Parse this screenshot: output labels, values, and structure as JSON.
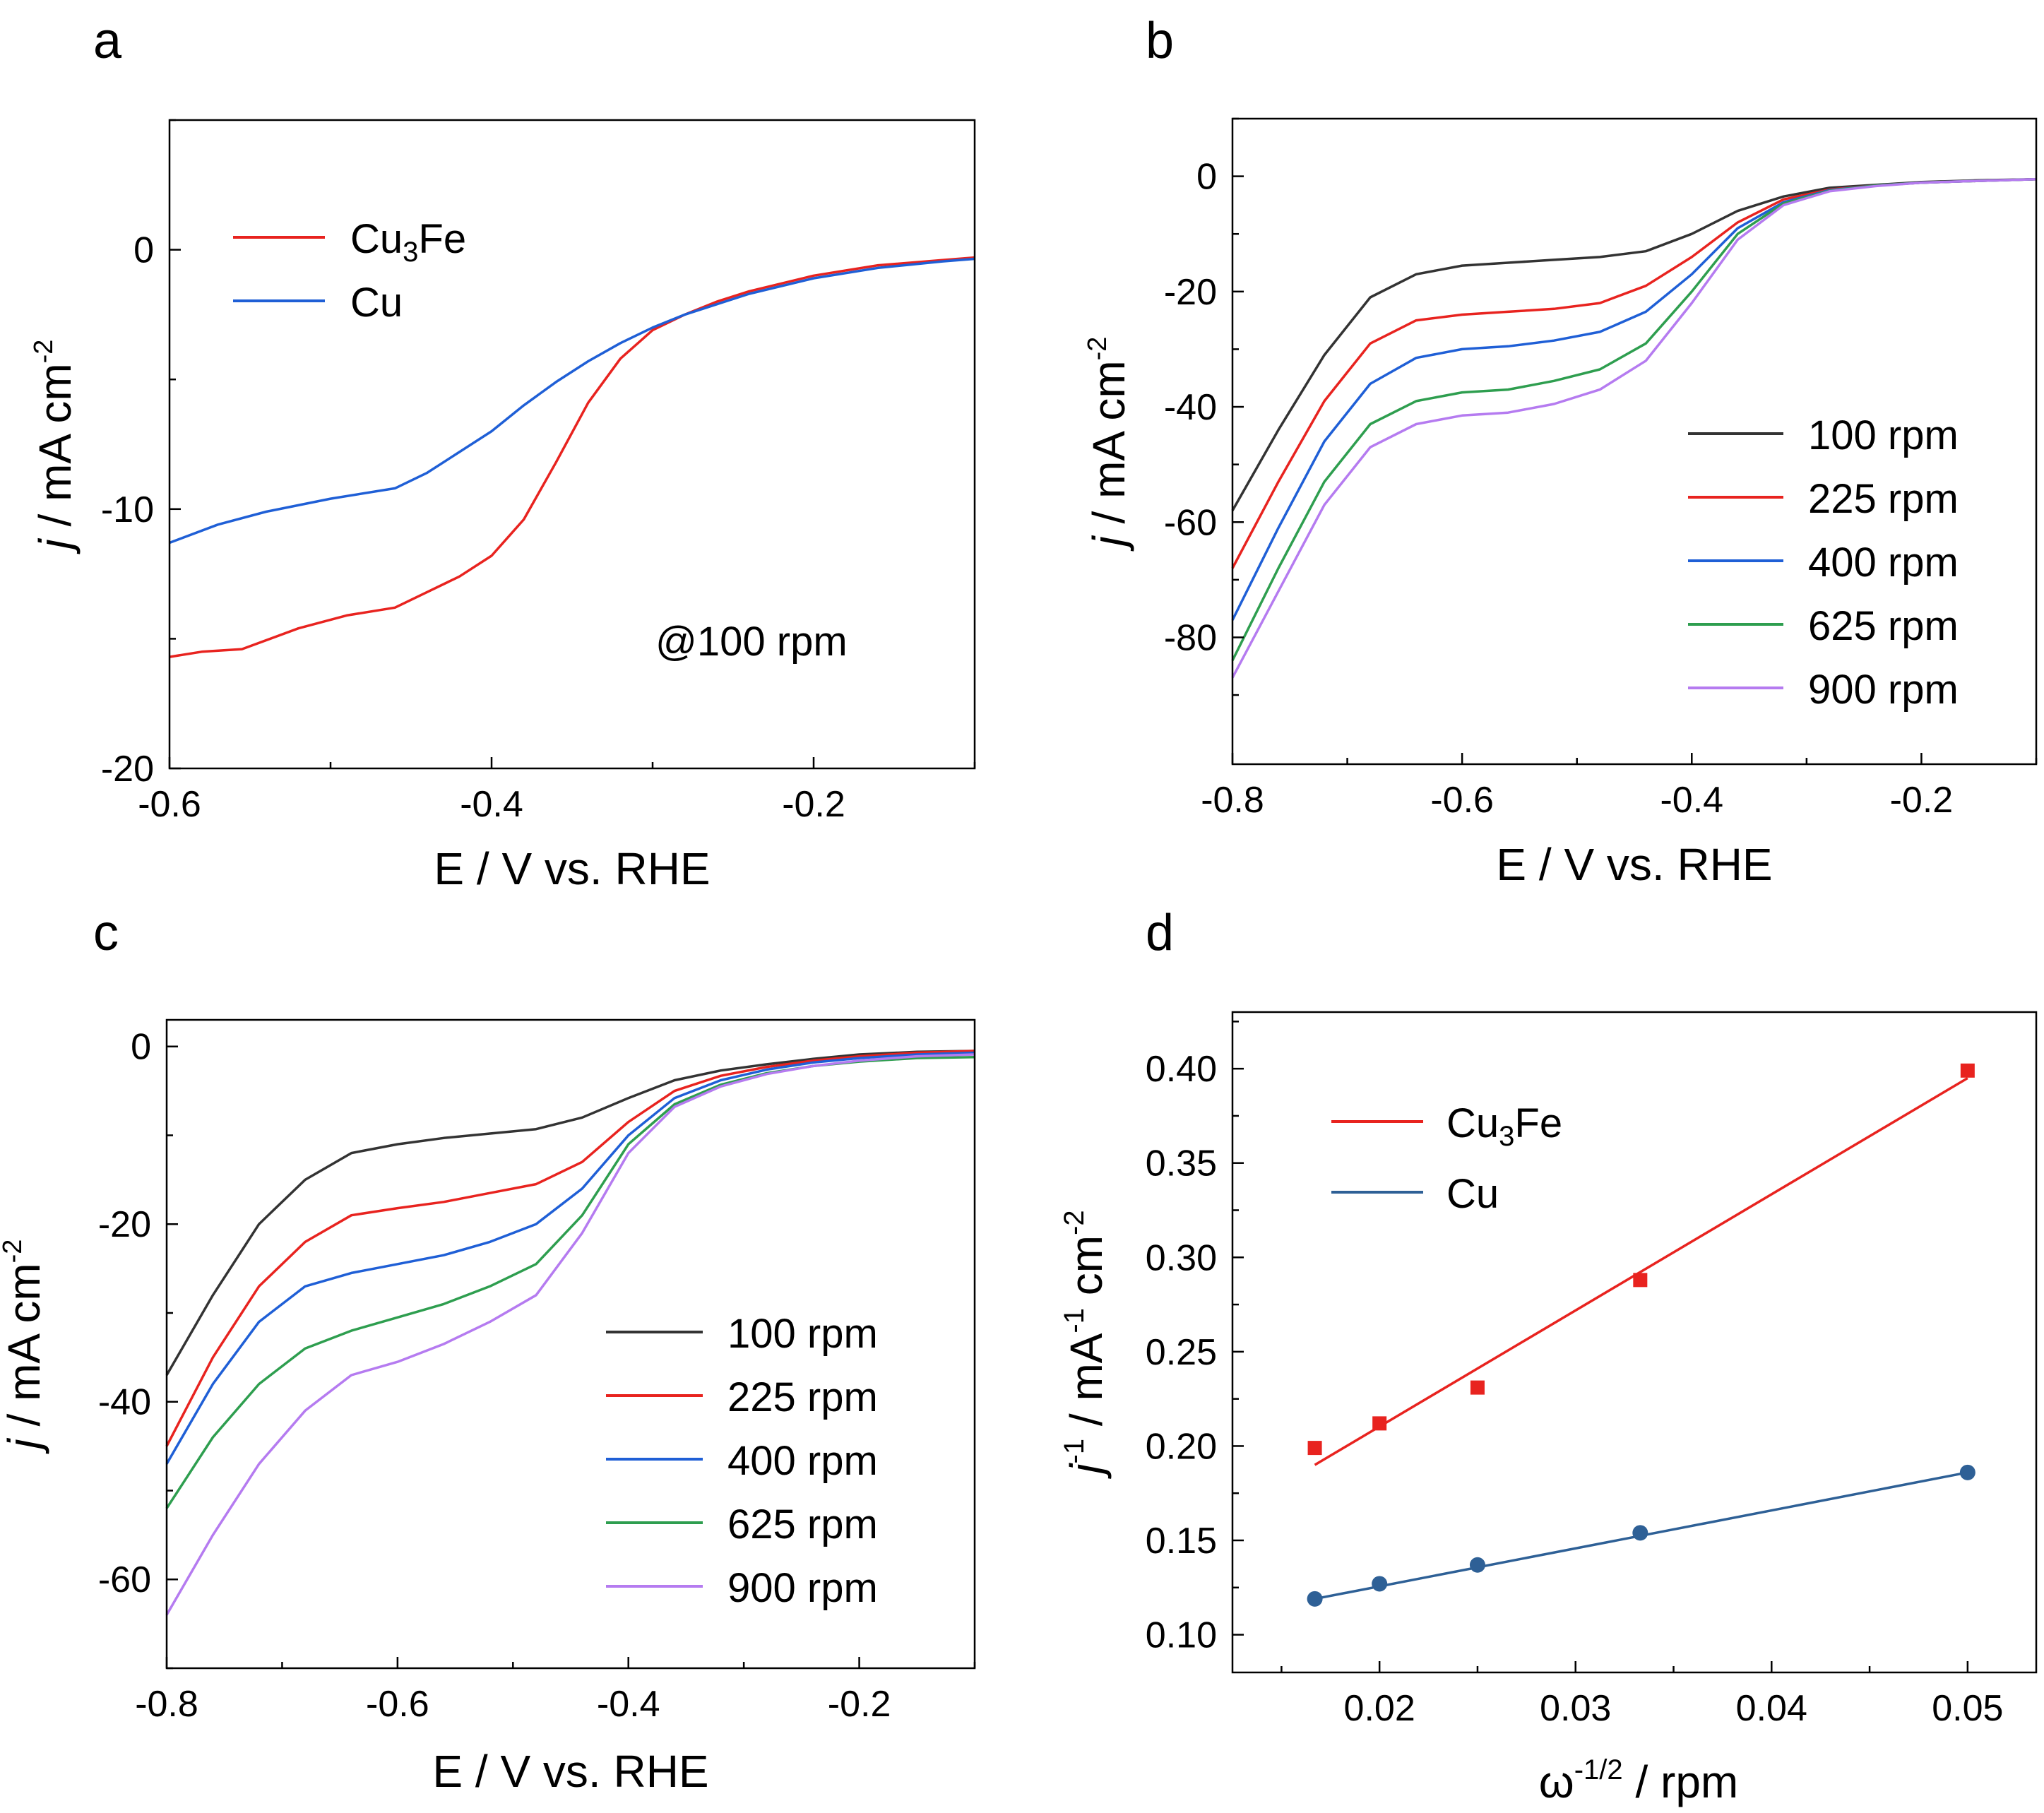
{
  "figure": {
    "panels": [
      "a",
      "b",
      "c",
      "d"
    ]
  },
  "chart_data": [
    {
      "panel": "a",
      "type": "line",
      "title": "",
      "xlabel": "E / V vs. RHE",
      "ylabel": "j / mA cm-2",
      "xlim": [
        -0.6,
        -0.1
      ],
      "ylim": [
        -20,
        5
      ],
      "xticks": [
        -0.6,
        -0.4,
        -0.2
      ],
      "xtick_labels": [
        "-0.6",
        "-0.4",
        "-0.2"
      ],
      "yticks": [
        -20,
        -10,
        0
      ],
      "ytick_labels": [
        "-20",
        "-10",
        "0"
      ],
      "annotation": "@100 rpm",
      "series": [
        {
          "name": "Cu3Fe",
          "color": "#e8231f",
          "x": [
            -0.6,
            -0.58,
            -0.555,
            -0.52,
            -0.49,
            -0.46,
            -0.44,
            -0.42,
            -0.4,
            -0.38,
            -0.36,
            -0.34,
            -0.32,
            -0.3,
            -0.28,
            -0.26,
            -0.24,
            -0.2,
            -0.16,
            -0.12,
            -0.1
          ],
          "y": [
            -15.7,
            -15.5,
            -15.4,
            -14.6,
            -14.1,
            -13.8,
            -13.2,
            -12.6,
            -11.8,
            -10.4,
            -8.2,
            -5.9,
            -4.2,
            -3.1,
            -2.5,
            -2.0,
            -1.6,
            -1.0,
            -0.6,
            -0.4,
            -0.3
          ]
        },
        {
          "name": "Cu",
          "color": "#1f5fd6",
          "x": [
            -0.6,
            -0.57,
            -0.54,
            -0.5,
            -0.46,
            -0.44,
            -0.42,
            -0.4,
            -0.38,
            -0.36,
            -0.34,
            -0.32,
            -0.3,
            -0.28,
            -0.26,
            -0.24,
            -0.2,
            -0.16,
            -0.12,
            -0.1
          ],
          "y": [
            -11.3,
            -10.6,
            -10.1,
            -9.6,
            -9.2,
            -8.6,
            -7.8,
            -7.0,
            -6.0,
            -5.1,
            -4.3,
            -3.6,
            -3.0,
            -2.5,
            -2.1,
            -1.7,
            -1.1,
            -0.7,
            -0.45,
            -0.35
          ]
        }
      ]
    },
    {
      "panel": "b",
      "type": "line",
      "title": "",
      "xlabel": "E / V vs. RHE",
      "ylabel": "j / mA cm-2",
      "xlim": [
        -0.8,
        -0.1
      ],
      "ylim": [
        -102,
        10
      ],
      "xticks": [
        -0.8,
        -0.6,
        -0.4,
        -0.2
      ],
      "xtick_labels": [
        "-0.8",
        "-0.6",
        "-0.4",
        "-0.2"
      ],
      "yticks": [
        -80,
        -60,
        -40,
        -20,
        0
      ],
      "ytick_labels": [
        "-80",
        "-60",
        "-40",
        "-20",
        "0"
      ],
      "series": [
        {
          "name": "100 rpm",
          "color": "#333333",
          "x": [
            -0.8,
            -0.76,
            -0.72,
            -0.68,
            -0.64,
            -0.6,
            -0.56,
            -0.52,
            -0.48,
            -0.44,
            -0.4,
            -0.36,
            -0.32,
            -0.28,
            -0.24,
            -0.2,
            -0.15,
            -0.1
          ],
          "y": [
            -58,
            -44,
            -31,
            -21,
            -17,
            -15.5,
            -15,
            -14.5,
            -14,
            -13,
            -10,
            -6,
            -3.5,
            -2,
            -1.5,
            -1,
            -0.7,
            -0.5
          ]
        },
        {
          "name": "225 rpm",
          "color": "#e8231f",
          "x": [
            -0.8,
            -0.76,
            -0.72,
            -0.68,
            -0.64,
            -0.6,
            -0.56,
            -0.52,
            -0.48,
            -0.44,
            -0.4,
            -0.36,
            -0.32,
            -0.28,
            -0.24,
            -0.2,
            -0.15,
            -0.1
          ],
          "y": [
            -68,
            -53,
            -39,
            -29,
            -25,
            -24,
            -23.5,
            -23,
            -22,
            -19,
            -14,
            -8,
            -4,
            -2.3,
            -1.6,
            -1.1,
            -0.8,
            -0.5
          ]
        },
        {
          "name": "400 rpm",
          "color": "#1f5fd6",
          "x": [
            -0.8,
            -0.76,
            -0.72,
            -0.68,
            -0.64,
            -0.6,
            -0.56,
            -0.52,
            -0.48,
            -0.44,
            -0.4,
            -0.36,
            -0.32,
            -0.28,
            -0.24,
            -0.2,
            -0.15,
            -0.1
          ],
          "y": [
            -77,
            -61,
            -46,
            -36,
            -31.5,
            -30,
            -29.5,
            -28.5,
            -27,
            -23.5,
            -17,
            -9,
            -4.5,
            -2.4,
            -1.6,
            -1.1,
            -0.8,
            -0.5
          ]
        },
        {
          "name": "625 rpm",
          "color": "#2e9e4f",
          "x": [
            -0.8,
            -0.76,
            -0.72,
            -0.68,
            -0.64,
            -0.6,
            -0.56,
            -0.52,
            -0.48,
            -0.44,
            -0.4,
            -0.36,
            -0.32,
            -0.28,
            -0.24,
            -0.2,
            -0.15,
            -0.1
          ],
          "y": [
            -84,
            -68,
            -53,
            -43,
            -39,
            -37.5,
            -37,
            -35.5,
            -33.5,
            -29,
            -20,
            -10,
            -4.7,
            -2.5,
            -1.6,
            -1.1,
            -0.8,
            -0.5
          ]
        },
        {
          "name": "900 rpm",
          "color": "#b57bf0",
          "x": [
            -0.8,
            -0.76,
            -0.72,
            -0.68,
            -0.64,
            -0.6,
            -0.56,
            -0.52,
            -0.48,
            -0.44,
            -0.4,
            -0.36,
            -0.32,
            -0.28,
            -0.24,
            -0.2,
            -0.15,
            -0.1
          ],
          "y": [
            -87,
            -72,
            -57,
            -47,
            -43,
            -41.5,
            -41,
            -39.5,
            -37,
            -32,
            -22,
            -11,
            -5,
            -2.6,
            -1.7,
            -1.1,
            -0.8,
            -0.5
          ]
        }
      ]
    },
    {
      "panel": "c",
      "type": "line",
      "title": "",
      "xlabel": "E / V vs. RHE",
      "ylabel": "j / mA cm-2",
      "xlim": [
        -0.8,
        -0.1
      ],
      "ylim": [
        -70,
        3
      ],
      "xticks": [
        -0.8,
        -0.6,
        -0.4,
        -0.2
      ],
      "xtick_labels": [
        "-0.8",
        "-0.6",
        "-0.4",
        "-0.2"
      ],
      "yticks": [
        -60,
        -40,
        -20,
        0
      ],
      "ytick_labels": [
        "-60",
        "-40",
        "-20",
        "0"
      ],
      "series": [
        {
          "name": "100 rpm",
          "color": "#333333",
          "x": [
            -0.8,
            -0.76,
            -0.72,
            -0.68,
            -0.64,
            -0.6,
            -0.56,
            -0.52,
            -0.48,
            -0.44,
            -0.4,
            -0.36,
            -0.32,
            -0.28,
            -0.24,
            -0.2,
            -0.15,
            -0.1
          ],
          "y": [
            -37,
            -28,
            -20,
            -15,
            -12,
            -11,
            -10.3,
            -9.8,
            -9.3,
            -8,
            -5.8,
            -3.8,
            -2.7,
            -2,
            -1.4,
            -0.9,
            -0.6,
            -0.5
          ]
        },
        {
          "name": "225 rpm",
          "color": "#e8231f",
          "x": [
            -0.8,
            -0.76,
            -0.72,
            -0.68,
            -0.64,
            -0.6,
            -0.56,
            -0.52,
            -0.48,
            -0.44,
            -0.4,
            -0.36,
            -0.32,
            -0.28,
            -0.24,
            -0.2,
            -0.15,
            -0.1
          ],
          "y": [
            -45,
            -35,
            -27,
            -22,
            -19,
            -18.2,
            -17.5,
            -16.5,
            -15.5,
            -13,
            -8.5,
            -5,
            -3.3,
            -2.3,
            -1.6,
            -1.1,
            -0.7,
            -0.5
          ]
        },
        {
          "name": "400 rpm",
          "color": "#1f5fd6",
          "x": [
            -0.8,
            -0.76,
            -0.72,
            -0.68,
            -0.64,
            -0.6,
            -0.56,
            -0.52,
            -0.48,
            -0.44,
            -0.4,
            -0.36,
            -0.32,
            -0.28,
            -0.24,
            -0.2,
            -0.15,
            -0.1
          ],
          "y": [
            -47,
            -38,
            -31,
            -27,
            -25.5,
            -24.5,
            -23.5,
            -22,
            -20,
            -16,
            -10,
            -5.8,
            -3.8,
            -2.6,
            -1.8,
            -1.3,
            -0.9,
            -0.7
          ]
        },
        {
          "name": "625 rpm",
          "color": "#2e9e4f",
          "x": [
            -0.8,
            -0.76,
            -0.72,
            -0.68,
            -0.64,
            -0.6,
            -0.56,
            -0.52,
            -0.48,
            -0.44,
            -0.4,
            -0.36,
            -0.32,
            -0.28,
            -0.24,
            -0.2,
            -0.15,
            -0.1
          ],
          "y": [
            -52,
            -44,
            -38,
            -34,
            -32,
            -30.5,
            -29,
            -27,
            -24.5,
            -19,
            -11,
            -6.5,
            -4.3,
            -3,
            -2.2,
            -1.7,
            -1.3,
            -1.2
          ]
        },
        {
          "name": "900 rpm",
          "color": "#b57bf0",
          "x": [
            -0.8,
            -0.76,
            -0.72,
            -0.68,
            -0.64,
            -0.6,
            -0.56,
            -0.52,
            -0.48,
            -0.44,
            -0.4,
            -0.36,
            -0.32,
            -0.28,
            -0.24,
            -0.2,
            -0.15,
            -0.1
          ],
          "y": [
            -64,
            -55,
            -47,
            -41,
            -37,
            -35.5,
            -33.5,
            -31,
            -28,
            -21,
            -12,
            -6.8,
            -4.5,
            -3.1,
            -2.2,
            -1.6,
            -1.1,
            -0.9
          ]
        }
      ]
    },
    {
      "panel": "d",
      "type": "scatter",
      "title": "",
      "xlabel": "ω-1/2 / rpm",
      "ylabel": "j-1 / mA-1 cm-2",
      "xlim": [
        0.0125,
        0.0535
      ],
      "ylim": [
        0.08,
        0.43
      ],
      "xticks": [
        0.02,
        0.03,
        0.04,
        0.05
      ],
      "xtick_labels": [
        "0.02",
        "0.03",
        "0.04",
        "0.05"
      ],
      "yticks": [
        0.1,
        0.15,
        0.2,
        0.25,
        0.3,
        0.35,
        0.4
      ],
      "ytick_labels": [
        "0.10",
        "0.15",
        "0.20",
        "0.25",
        "0.30",
        "0.35",
        "0.40"
      ],
      "series": [
        {
          "name": "Cu3Fe",
          "color": "#e8231f",
          "marker": "square",
          "x": [
            0.0167,
            0.02,
            0.025,
            0.0333,
            0.05
          ],
          "y": [
            0.199,
            0.212,
            0.231,
            0.288,
            0.399
          ],
          "fit": {
            "x": [
              0.0167,
              0.05
            ],
            "y": [
              0.19,
              0.395
            ]
          }
        },
        {
          "name": "Cu",
          "color": "#2e6096",
          "marker": "circle",
          "x": [
            0.0167,
            0.02,
            0.025,
            0.0333,
            0.05
          ],
          "y": [
            0.119,
            0.127,
            0.137,
            0.154,
            0.186
          ],
          "fit": {
            "x": [
              0.0167,
              0.05
            ],
            "y": [
              0.119,
              0.186
            ]
          }
        }
      ]
    }
  ]
}
